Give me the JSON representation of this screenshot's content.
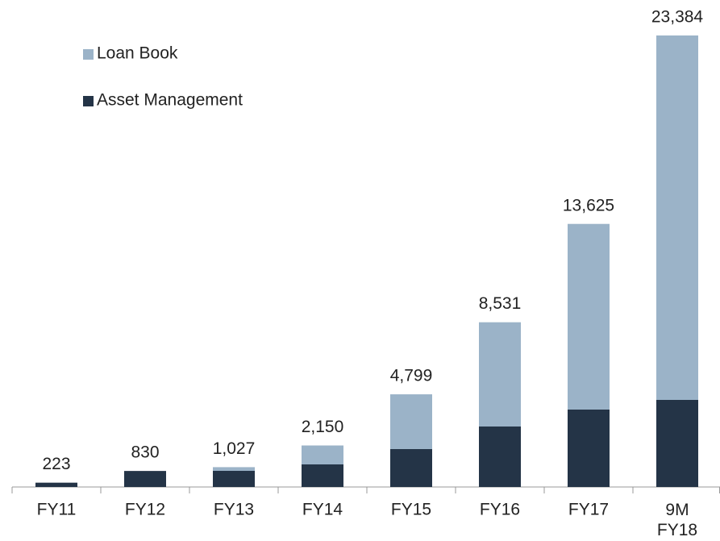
{
  "chart_data": {
    "type": "stacked_bar",
    "categories": [
      "FY11",
      "FY12",
      "FY13",
      "FY14",
      "FY15",
      "FY16",
      "FY17",
      "9M FY18"
    ],
    "series": [
      {
        "name": "Asset Management",
        "color": "#243447",
        "values": [
          223,
          830,
          835,
          1169,
          1963,
          3132,
          4009,
          4510
        ]
      },
      {
        "name": "Loan Book",
        "color": "#9bb3c8",
        "values": [
          0,
          0,
          192,
          981,
          2836,
          5399,
          9616,
          18874
        ]
      }
    ],
    "totals": [
      223,
      830,
      1027,
      2150,
      4799,
      8531,
      13625,
      23384
    ],
    "total_labels": [
      "223",
      "830",
      "1,027",
      "2,150",
      "4,799",
      "8,531",
      "13,625",
      "23,384"
    ]
  }
}
